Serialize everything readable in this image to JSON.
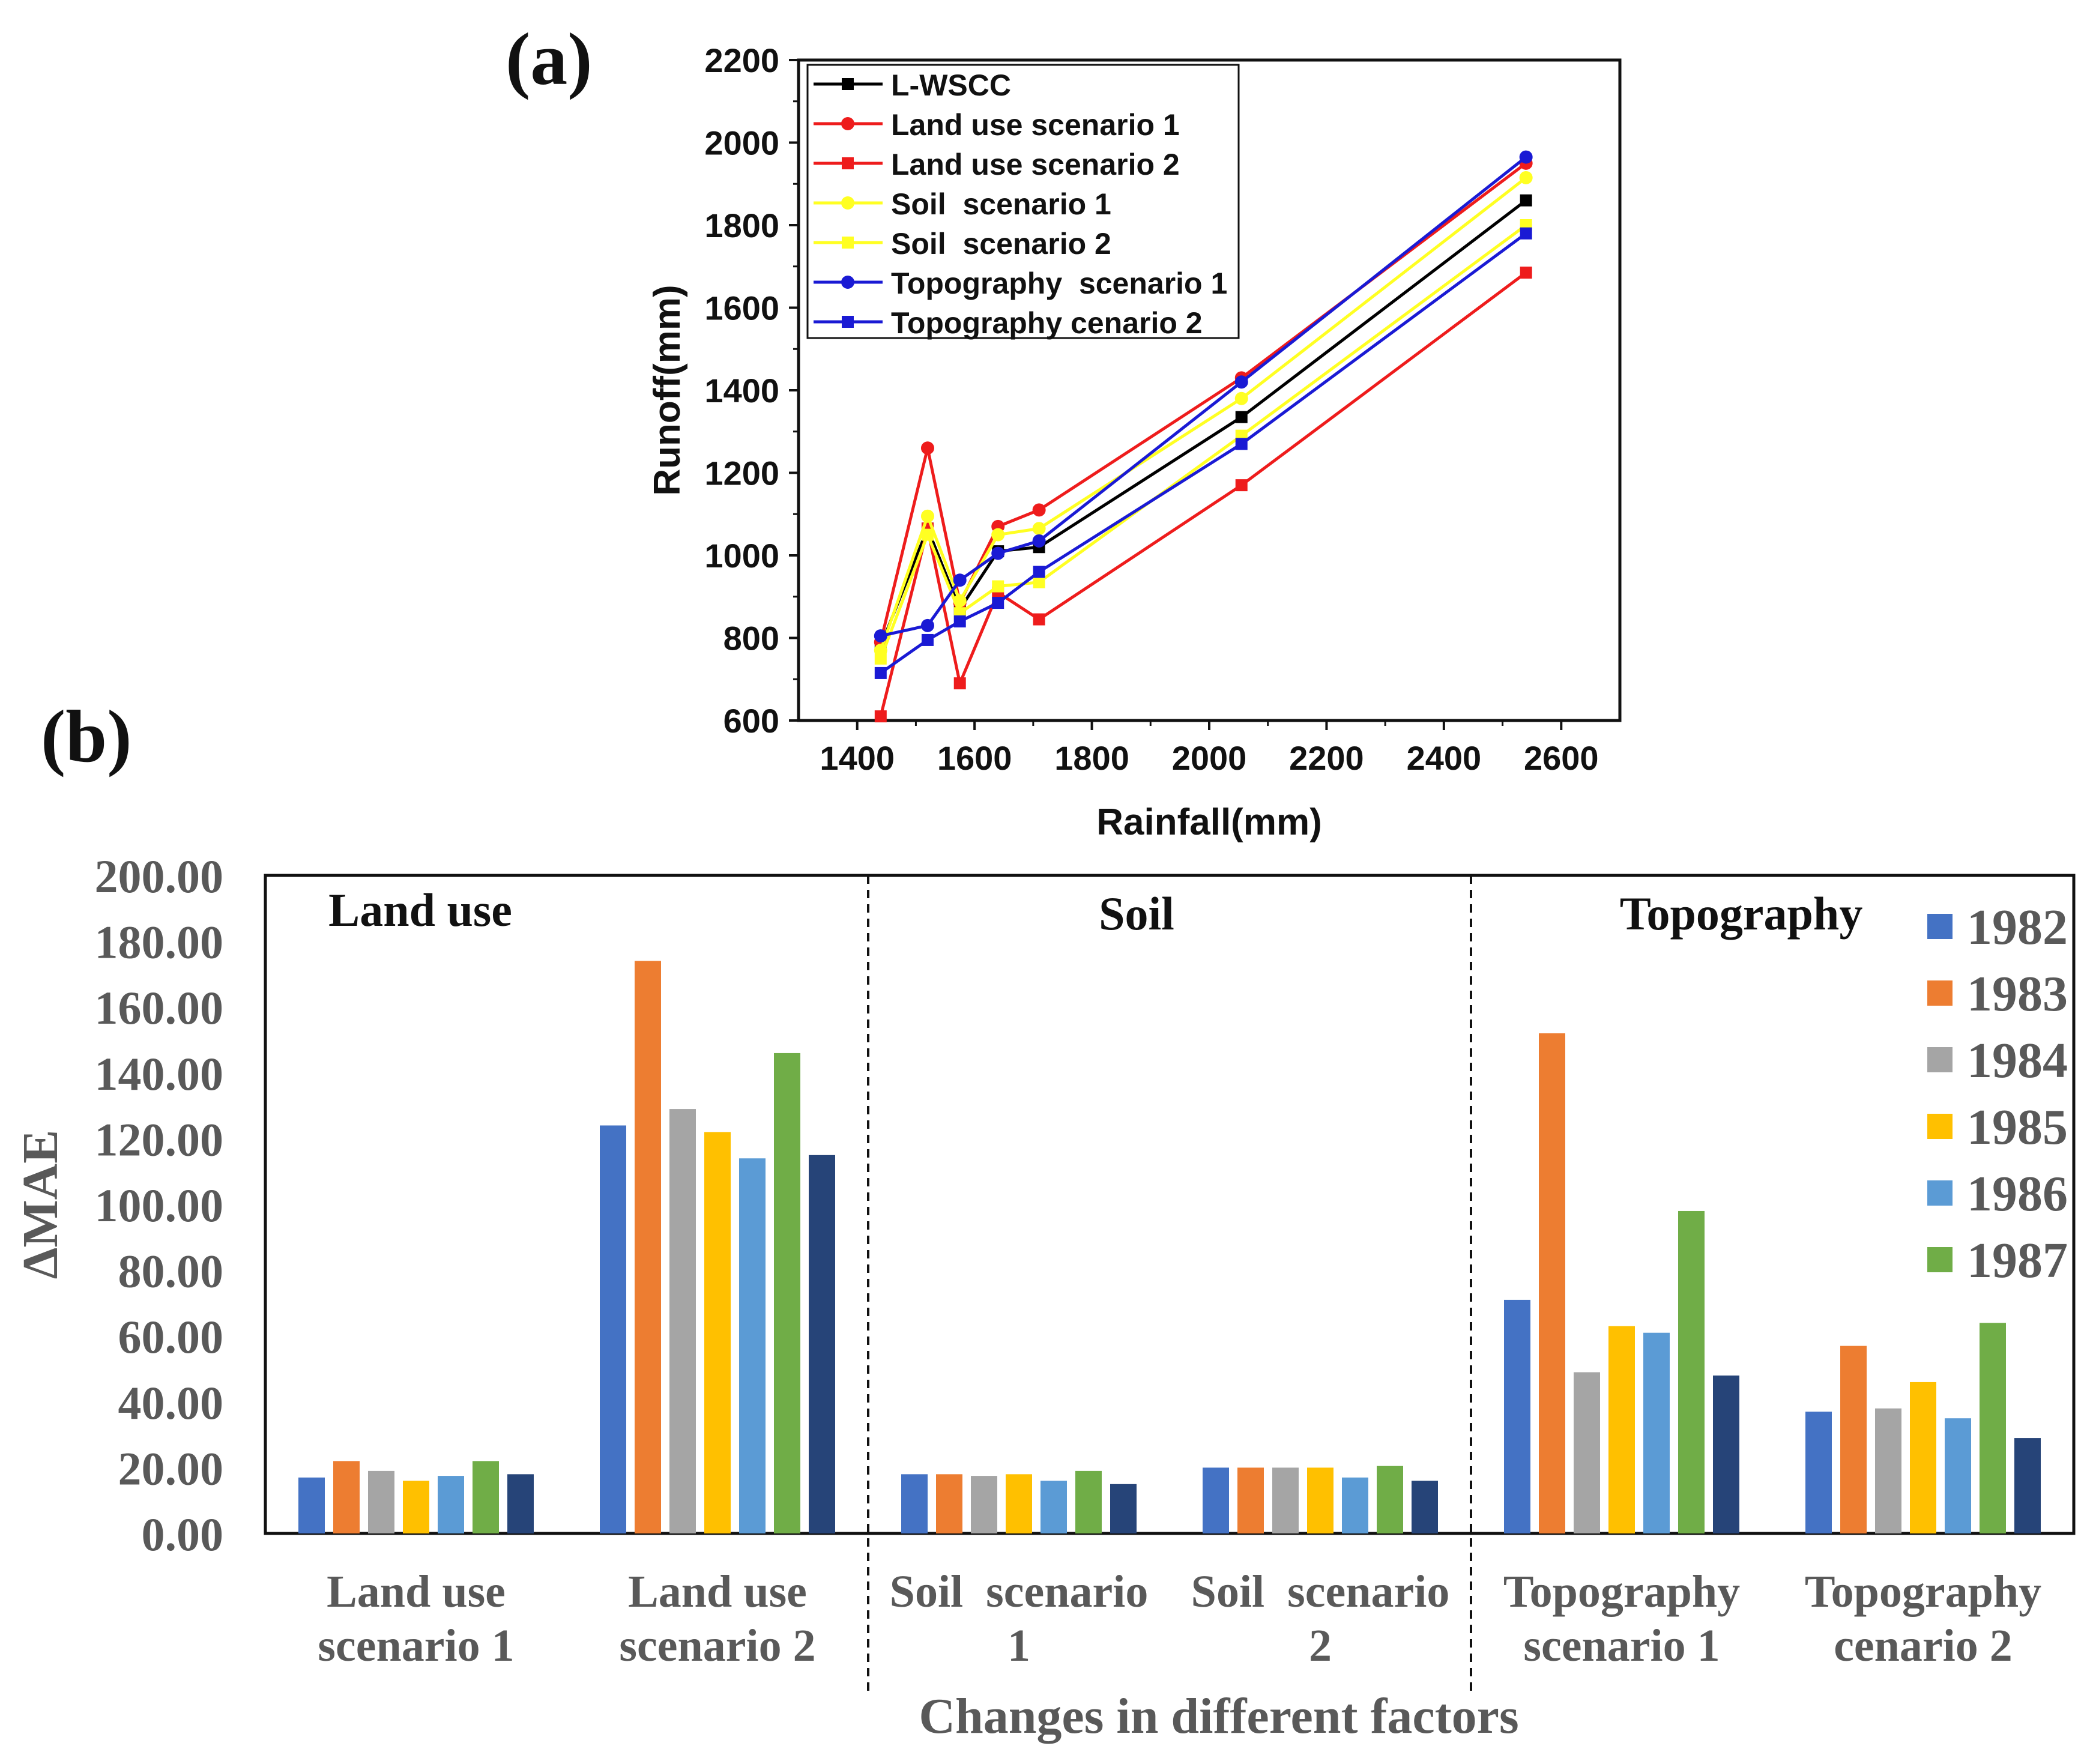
{
  "panel_labels": {
    "a": "(a)",
    "b": "(b)"
  },
  "colors": {
    "L-WSCC": "#000000",
    "Land use scenario 1": "#ee1c1c",
    "Land use scenario 2": "#ee1c1c",
    "Soil  scenario 1": "#ffff22",
    "Soil  scenario 2": "#ffff22",
    "Topography  scenario 1": "#1a1ad4",
    "Topography cenario 2": "#1a1ad4",
    "1982": "#4472c4",
    "1983": "#ed7d31",
    "1984": "#a5a5a5",
    "1985": "#ffc000",
    "1986": "#5b9bd5",
    "1987": "#70ad47",
    "1988": "#264478"
  },
  "chart_data": [
    {
      "type": "line",
      "xlabel": "Rainfall(mm)",
      "ylabel": "Runoff(mm)",
      "xlim": [
        1300,
        2700
      ],
      "ylim": [
        600,
        2200
      ],
      "xticks": [
        1400,
        1600,
        1800,
        2000,
        2200,
        2400,
        2600
      ],
      "yticks": [
        600,
        800,
        1000,
        1200,
        1400,
        1600,
        1800,
        2000,
        2200
      ],
      "x": [
        1440,
        1520,
        1575,
        1640,
        1710,
        2055,
        2540
      ],
      "legend_position": "top-left",
      "series": [
        {
          "name": "L-WSCC",
          "marker": "square",
          "values": [
            780,
            1065,
            870,
            1010,
            1020,
            1335,
            1860
          ]
        },
        {
          "name": "Land use scenario 1",
          "marker": "circle",
          "values": [
            790,
            1260,
            885,
            1070,
            1110,
            1430,
            1950
          ]
        },
        {
          "name": "Land use scenario 2",
          "marker": "square",
          "values": [
            610,
            1065,
            690,
            910,
            845,
            1170,
            1685
          ]
        },
        {
          "name": "Soil  scenario 1",
          "marker": "circle",
          "values": [
            770,
            1095,
            890,
            1050,
            1065,
            1380,
            1915
          ]
        },
        {
          "name": "Soil  scenario 2",
          "marker": "square",
          "values": [
            750,
            1050,
            860,
            925,
            935,
            1290,
            1800
          ]
        },
        {
          "name": "Topography  scenario 1",
          "marker": "circle",
          "values": [
            805,
            830,
            940,
            1005,
            1035,
            1420,
            1965
          ]
        },
        {
          "name": "Topography cenario 2",
          "marker": "square",
          "values": [
            715,
            795,
            840,
            885,
            960,
            1270,
            1780
          ]
        }
      ]
    },
    {
      "type": "bar",
      "xlabel": "Changes in different factors",
      "ylabel": "ΔMAE",
      "ylim": [
        0,
        200
      ],
      "yticks": [
        "0.00",
        "20.00",
        "40.00",
        "60.00",
        "80.00",
        "100.00",
        "120.00",
        "140.00",
        "160.00",
        "180.00",
        "200.00"
      ],
      "groups": [
        {
          "label": "Land use",
          "categories": [
            0,
            1
          ]
        },
        {
          "label": "Soil",
          "categories": [
            2,
            3
          ]
        },
        {
          "label": "Topography",
          "categories": [
            4,
            5
          ]
        }
      ],
      "categories": [
        [
          "Land use",
          "scenario 1"
        ],
        [
          "Land use",
          "scenario 2"
        ],
        [
          "Soil  scenario",
          "1"
        ],
        [
          "Soil  scenario",
          "2"
        ],
        [
          "Topography",
          "scenario 1"
        ],
        [
          "Topography",
          "cenario 2"
        ]
      ],
      "legend_position": "top-right",
      "series": [
        {
          "name": "1982",
          "values": [
            17,
            124,
            18,
            20,
            71,
            37
          ]
        },
        {
          "name": "1983",
          "values": [
            22,
            174,
            18,
            20,
            152,
            57
          ]
        },
        {
          "name": "1984",
          "values": [
            19,
            129,
            17.5,
            20,
            49,
            38
          ]
        },
        {
          "name": "1985",
          "values": [
            16,
            122,
            18,
            20,
            63,
            46
          ]
        },
        {
          "name": "1986",
          "values": [
            17.5,
            114,
            16,
            17,
            61,
            35
          ]
        },
        {
          "name": "1987",
          "values": [
            22,
            146,
            19,
            20.5,
            98,
            64
          ]
        },
        {
          "values": [
            18,
            115,
            15,
            16,
            48,
            29
          ]
        }
      ]
    }
  ]
}
